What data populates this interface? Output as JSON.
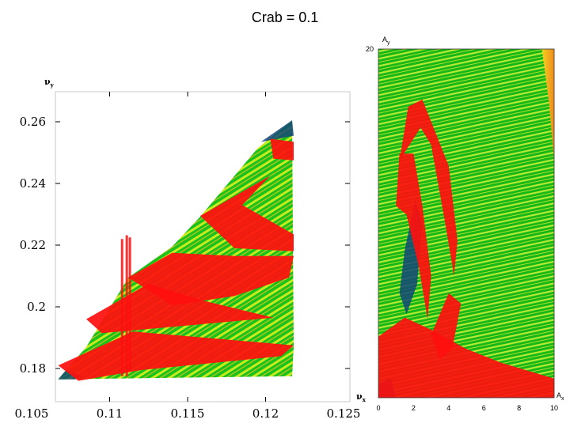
{
  "slide": {
    "title": "Crab = 0.1"
  },
  "colors": {
    "background": "#ffffff",
    "green": "#17c317",
    "yellow": "#e6f01e",
    "red": "#ff0f0f",
    "blue": "#124678",
    "orange": "#f0a01e"
  },
  "chart_data": [
    {
      "type": "heatmap",
      "xlabel": "νx",
      "ylabel": "νy",
      "xlim": [
        0.105,
        0.125
      ],
      "ylim": [
        0.17,
        0.27
      ],
      "x_ticks": [
        "0.105",
        "0.11",
        "0.115",
        "0.12",
        "0.125"
      ],
      "y_ticks": [
        "0.18",
        "0.2",
        "0.22",
        "0.24",
        "0.26"
      ],
      "x_tick_values": [
        0.105,
        0.11,
        0.115,
        0.12,
        0.125
      ],
      "y_tick_values": [
        0.18,
        0.2,
        0.22,
        0.24,
        0.26
      ],
      "grid": false,
      "region_outline": [
        [
          0.1067,
          0.1765
        ],
        [
          0.1085,
          0.187
        ],
        [
          0.1112,
          0.2095
        ],
        [
          0.114,
          0.2195
        ],
        [
          0.1158,
          0.2292
        ],
        [
          0.1195,
          0.2515
        ],
        [
          0.1217,
          0.2605
        ],
        [
          0.1218,
          0.187
        ],
        [
          0.1217,
          0.1775
        ]
      ],
      "red_regions": [
        [
          [
            0.1067,
            0.181
          ],
          [
            0.1115,
            0.192
          ],
          [
            0.1218,
            0.1875
          ],
          [
            0.121,
            0.184
          ],
          [
            0.112,
            0.1795
          ],
          [
            0.108,
            0.176
          ]
        ],
        [
          [
            0.1085,
            0.196
          ],
          [
            0.1125,
            0.2075
          ],
          [
            0.116,
            0.202
          ],
          [
            0.1205,
            0.1965
          ],
          [
            0.114,
            0.1935
          ],
          [
            0.1095,
            0.1915
          ]
        ],
        [
          [
            0.1112,
            0.2095
          ],
          [
            0.114,
            0.2175
          ],
          [
            0.118,
            0.2165
          ],
          [
            0.1218,
            0.2165
          ],
          [
            0.1215,
            0.2095
          ],
          [
            0.118,
            0.2035
          ],
          [
            0.114,
            0.2005
          ]
        ],
        [
          [
            0.1158,
            0.2295
          ],
          [
            0.1203,
            0.2425
          ],
          [
            0.1185,
            0.233
          ],
          [
            0.1218,
            0.2235
          ],
          [
            0.1218,
            0.218
          ],
          [
            0.118,
            0.219
          ]
        ],
        [
          [
            0.1203,
            0.2545
          ],
          [
            0.1218,
            0.2535
          ],
          [
            0.1218,
            0.2475
          ],
          [
            0.1205,
            0.248
          ]
        ]
      ],
      "red_spikes": [
        {
          "x": 0.1111,
          "y0": 0.1775,
          "y1": 0.2232
        },
        {
          "x": 0.1108,
          "y0": 0.1775,
          "y1": 0.222
        },
        {
          "x": 0.1113,
          "y0": 0.179,
          "y1": 0.2225
        }
      ]
    },
    {
      "type": "heatmap",
      "xlabel": "Ax",
      "ylabel": "Ay",
      "xlim": [
        0,
        10
      ],
      "ylim": [
        0,
        20
      ],
      "x_ticks": [
        "0",
        "2",
        "4",
        "6",
        "8",
        "10"
      ],
      "y_ticks": [
        "20"
      ],
      "x_tick_values": [
        0,
        2,
        4,
        6,
        8,
        10
      ],
      "y_tick_values": [
        20
      ],
      "grid": false,
      "red_regions": [
        [
          [
            1.2,
            13.6
          ],
          [
            1.7,
            16.7
          ],
          [
            2.5,
            17.1
          ],
          [
            4.0,
            13.3
          ],
          [
            4.5,
            9.0
          ],
          [
            4.3,
            7.0
          ],
          [
            3.8,
            10.0
          ],
          [
            3.0,
            14.5
          ],
          [
            2.4,
            15.5
          ]
        ],
        [
          [
            1.0,
            11.0
          ],
          [
            1.2,
            14.0
          ],
          [
            2.0,
            14.0
          ],
          [
            2.5,
            11.0
          ],
          [
            3.0,
            7.0
          ],
          [
            2.8,
            4.5
          ],
          [
            2.3,
            7.5
          ],
          [
            1.6,
            10.5
          ]
        ],
        [
          [
            0.0,
            0.0
          ],
          [
            0.0,
            3.5
          ],
          [
            1.5,
            4.6
          ],
          [
            3.0,
            3.9
          ],
          [
            5.0,
            2.8
          ],
          [
            7.0,
            2.0
          ],
          [
            10.0,
            1.1
          ],
          [
            10.0,
            0.0
          ]
        ],
        [
          [
            3.0,
            3.6
          ],
          [
            4.0,
            6.0
          ],
          [
            4.7,
            5.4
          ],
          [
            4.2,
            2.8
          ],
          [
            3.5,
            2.2
          ]
        ]
      ],
      "blue_regions": [
        [
          [
            1.2,
            6.0
          ],
          [
            1.5,
            8.5
          ],
          [
            2.1,
            11.3
          ],
          [
            2.5,
            10.0
          ],
          [
            2.2,
            6.5
          ],
          [
            1.6,
            4.8
          ]
        ],
        [
          [
            0.0,
            0.0
          ],
          [
            0.0,
            0.8
          ],
          [
            0.7,
            1.1
          ],
          [
            1.0,
            0.0
          ]
        ]
      ],
      "orange_regions": [
        [
          [
            9.3,
            20.0
          ],
          [
            10.0,
            20.0
          ],
          [
            10.0,
            13.6
          ],
          [
            9.7,
            17.0
          ]
        ]
      ]
    }
  ]
}
